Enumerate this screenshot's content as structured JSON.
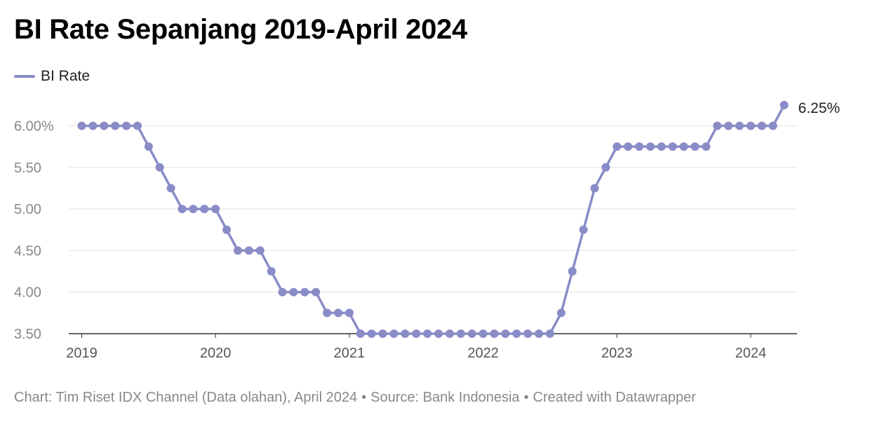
{
  "title": "BI Rate Sepanjang 2019-April 2024",
  "footer": {
    "chart_credit": "Chart: Tim Riset IDX Channel (Data olahan), April 2024",
    "source": "Source: Bank Indonesia",
    "created_with": "Created with Datawrapper",
    "separator": "•"
  },
  "colors": {
    "series": "#8a8cc8",
    "grid": "#e3e3e3",
    "axis": "#888888"
  },
  "chart_data": {
    "type": "line",
    "title": "BI Rate Sepanjang 2019-April 2024",
    "series": [
      {
        "name": "BI Rate",
        "x": [
          "2019-01",
          "2019-02",
          "2019-03",
          "2019-04",
          "2019-05",
          "2019-06",
          "2019-07",
          "2019-08",
          "2019-09",
          "2019-10",
          "2019-11",
          "2019-12",
          "2020-01",
          "2020-02",
          "2020-03",
          "2020-04",
          "2020-05",
          "2020-06",
          "2020-07",
          "2020-08",
          "2020-09",
          "2020-10",
          "2020-11",
          "2020-12",
          "2021-01",
          "2021-02",
          "2021-03",
          "2021-04",
          "2021-05",
          "2021-06",
          "2021-07",
          "2021-08",
          "2021-09",
          "2021-10",
          "2021-11",
          "2021-12",
          "2022-01",
          "2022-02",
          "2022-03",
          "2022-04",
          "2022-05",
          "2022-06",
          "2022-07",
          "2022-08",
          "2022-09",
          "2022-10",
          "2022-11",
          "2022-12",
          "2023-01",
          "2023-02",
          "2023-03",
          "2023-04",
          "2023-05",
          "2023-06",
          "2023-07",
          "2023-08",
          "2023-09",
          "2023-10",
          "2023-11",
          "2023-12",
          "2024-01",
          "2024-02",
          "2024-03",
          "2024-04"
        ],
        "values": [
          6.0,
          6.0,
          6.0,
          6.0,
          6.0,
          6.0,
          5.75,
          5.5,
          5.25,
          5.0,
          5.0,
          5.0,
          5.0,
          4.75,
          4.5,
          4.5,
          4.5,
          4.25,
          4.0,
          4.0,
          4.0,
          4.0,
          3.75,
          3.75,
          3.75,
          3.5,
          3.5,
          3.5,
          3.5,
          3.5,
          3.5,
          3.5,
          3.5,
          3.5,
          3.5,
          3.5,
          3.5,
          3.5,
          3.5,
          3.5,
          3.5,
          3.5,
          3.5,
          3.75,
          4.25,
          4.75,
          5.25,
          5.5,
          5.75,
          5.75,
          5.75,
          5.75,
          5.75,
          5.75,
          5.75,
          5.75,
          5.75,
          6.0,
          6.0,
          6.0,
          6.0,
          6.0,
          6.0,
          6.25
        ]
      }
    ],
    "y_ticks": [
      "6.00%",
      "5.50",
      "5.00",
      "4.50",
      "4.00",
      "3.50"
    ],
    "y_tick_values": [
      6.0,
      5.5,
      5.0,
      4.5,
      4.0,
      3.5
    ],
    "x_ticks": [
      "2019",
      "2020",
      "2021",
      "2022",
      "2023",
      "2024"
    ],
    "ylim": [
      3.5,
      6.25
    ],
    "last_value_label": "6.25%",
    "legend_position": "top-left",
    "grid": true
  }
}
